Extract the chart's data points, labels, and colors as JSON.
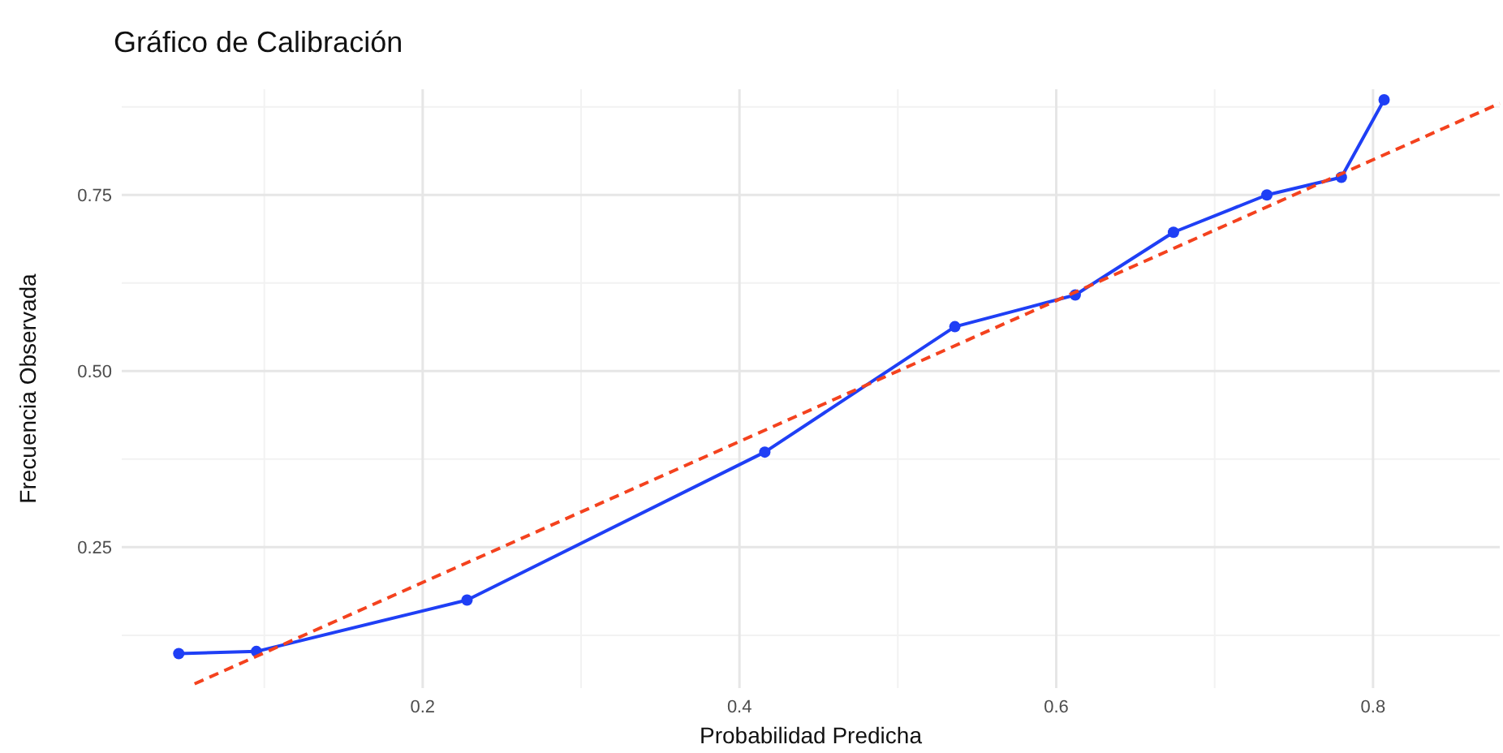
{
  "chart_data": {
    "type": "line",
    "title": "Gráfico de Calibración",
    "xlabel": "Probabilidad Predicha",
    "ylabel": "Frecuencia Observada",
    "xlim": [
      0.01,
      0.88
    ],
    "ylim": [
      0.05,
      0.9
    ],
    "xticks": [
      0.2,
      0.4,
      0.6,
      0.8
    ],
    "yticks": [
      {
        "value": 0.25,
        "label": "0.25"
      },
      {
        "value": 0.5,
        "label": "0.50"
      },
      {
        "value": 0.75,
        "label": "0.75"
      }
    ],
    "grid": true,
    "series": [
      {
        "color": "#1f3ff5",
        "marker": "circle",
        "line_style": "solid",
        "x": [
          0.046,
          0.095,
          0.228,
          0.416,
          0.536,
          0.612,
          0.674,
          0.733,
          0.78,
          0.807
        ],
        "values": [
          0.099,
          0.102,
          0.175,
          0.385,
          0.563,
          0.608,
          0.697,
          0.75,
          0.775,
          0.885
        ]
      },
      {
        "color": "#f4421e",
        "marker": "none",
        "line_style": "dashed",
        "x": [
          0.056,
          0.88
        ],
        "values": [
          0.056,
          0.88
        ]
      }
    ]
  }
}
